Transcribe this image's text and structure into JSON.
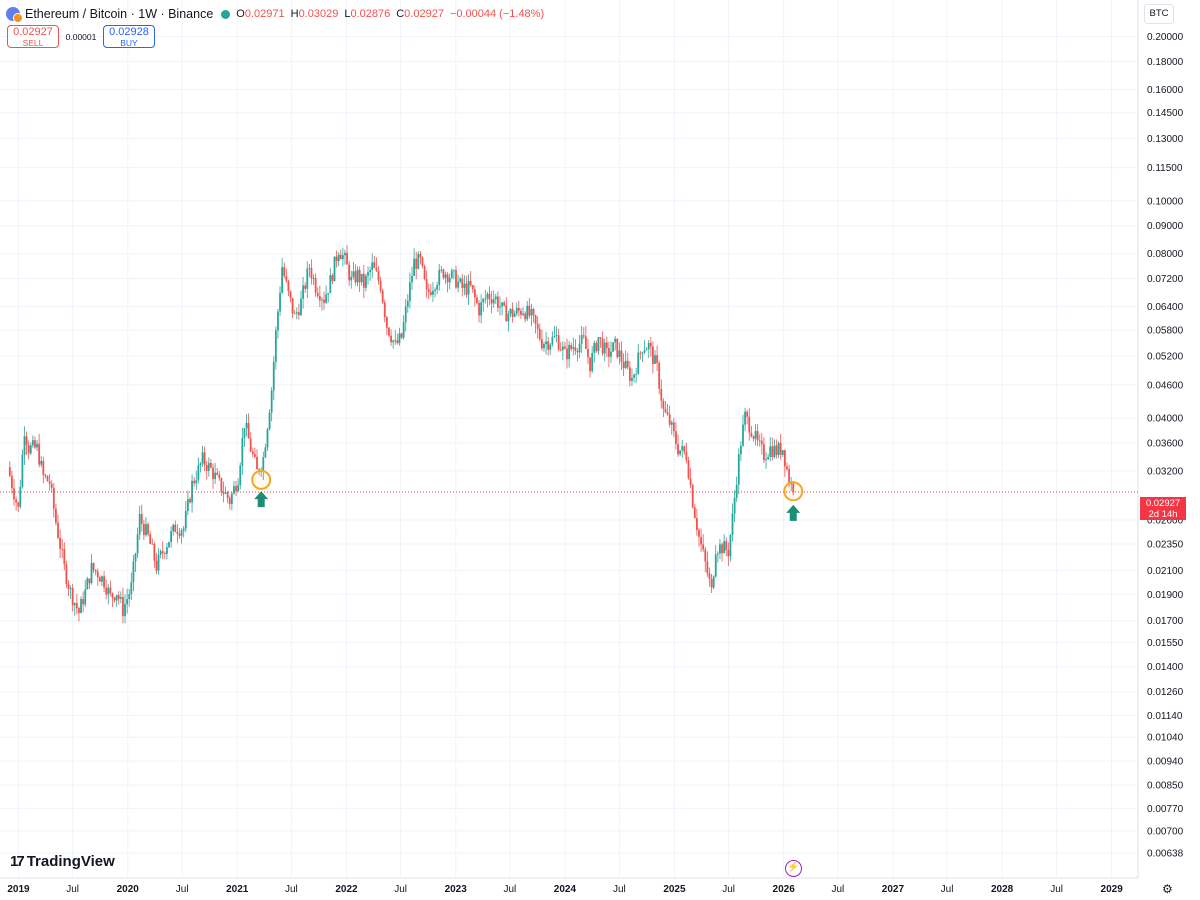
{
  "header": {
    "title": "Ethereum / Bitcoin · 1W · Binance",
    "open_label": "O",
    "open": "0.02971",
    "high_label": "H",
    "high": "0.03029",
    "low_label": "L",
    "low": "0.02876",
    "close_label": "C",
    "close": "0.02927",
    "change": "−0.00044 (−1.48%)"
  },
  "trade": {
    "sell_price": "0.02927",
    "sell_label": "SELL",
    "spread": "0.00001",
    "buy_price": "0.02928",
    "buy_label": "BUY"
  },
  "currency_button": "BTC",
  "last_price": {
    "value": "0.02927",
    "countdown": "2d 14h"
  },
  "branding": {
    "logo_text": "TradingView"
  },
  "colors": {
    "up": "#26a69a",
    "down": "#ef5350",
    "marker_circle": "#f5a623",
    "arrow": "#1e8c77"
  },
  "icons": {
    "symbol": "eth-btc-icon",
    "status": "market-status-icon",
    "bolt": "bolt-icon",
    "settings": "gear-icon"
  },
  "chart_data": {
    "type": "candlestick",
    "log_scale": true,
    "grid": true,
    "y_ticks": [
      0.2,
      0.18,
      0.16,
      0.145,
      0.13,
      0.115,
      0.1,
      0.09,
      0.08,
      0.072,
      0.064,
      0.058,
      0.052,
      0.046,
      0.04,
      0.036,
      0.032,
      0.026,
      0.0235,
      0.021,
      0.019,
      0.017,
      0.0155,
      0.014,
      0.0126,
      0.0114,
      0.0104,
      0.0094,
      0.0085,
      0.0077,
      0.007,
      0.00638
    ],
    "y_tick_labels": [
      "0.20000",
      "0.18000",
      "0.16000",
      "0.14500",
      "0.13000",
      "0.11500",
      "0.10000",
      "0.09000",
      "0.08000",
      "0.07200",
      "0.06400",
      "0.05800",
      "0.05200",
      "0.04600",
      "0.04000",
      "0.03600",
      "0.03200",
      "0.02600",
      "0.02350",
      "0.02100",
      "0.01900",
      "0.01700",
      "0.01550",
      "0.01400",
      "0.01260",
      "0.01140",
      "0.01040",
      "0.00940",
      "0.00850",
      "0.00770",
      "0.00700",
      "0.00638"
    ],
    "x_ticks": [
      {
        "label": "2019",
        "date": "2019-01-01",
        "bold": true
      },
      {
        "label": "Jul",
        "date": "2019-07-01",
        "bold": false
      },
      {
        "label": "2020",
        "date": "2020-01-01",
        "bold": true
      },
      {
        "label": "Jul",
        "date": "2020-07-01",
        "bold": false
      },
      {
        "label": "2021",
        "date": "2021-01-01",
        "bold": true
      },
      {
        "label": "Jul",
        "date": "2021-07-01",
        "bold": false
      },
      {
        "label": "2022",
        "date": "2022-01-01",
        "bold": true
      },
      {
        "label": "Jul",
        "date": "2022-07-01",
        "bold": false
      },
      {
        "label": "2023",
        "date": "2023-01-01",
        "bold": true
      },
      {
        "label": "Jul",
        "date": "2023-07-01",
        "bold": false
      },
      {
        "label": "2024",
        "date": "2024-01-01",
        "bold": true
      },
      {
        "label": "Jul",
        "date": "2024-07-01",
        "bold": false
      },
      {
        "label": "2025",
        "date": "2025-01-01",
        "bold": true
      },
      {
        "label": "Jul",
        "date": "2025-07-01",
        "bold": false
      },
      {
        "label": "2026",
        "date": "2026-01-01",
        "bold": true
      },
      {
        "label": "Jul",
        "date": "2026-07-01",
        "bold": false
      },
      {
        "label": "2027",
        "date": "2027-01-01",
        "bold": true
      },
      {
        "label": "Jul",
        "date": "2027-07-01",
        "bold": false
      },
      {
        "label": "2028",
        "date": "2028-01-01",
        "bold": true
      },
      {
        "label": "Jul",
        "date": "2028-07-01",
        "bold": false
      },
      {
        "label": "2029",
        "date": "2029-01-01",
        "bold": true
      }
    ],
    "price_line": 0.02927,
    "close_path": [
      [
        "2018-11-26",
        0.0325
      ],
      [
        "2018-12-31",
        0.0272
      ],
      [
        "2019-01-21",
        0.0382
      ],
      [
        "2019-02-04",
        0.0352
      ],
      [
        "2019-03-04",
        0.0352
      ],
      [
        "2019-03-25",
        0.0312
      ],
      [
        "2019-04-15",
        0.0305
      ],
      [
        "2019-05-06",
        0.0258
      ],
      [
        "2019-06-03",
        0.0212
      ],
      [
        "2019-06-24",
        0.0192
      ],
      [
        "2019-07-22",
        0.0176
      ],
      [
        "2019-08-12",
        0.0192
      ],
      [
        "2019-09-02",
        0.0212
      ],
      [
        "2019-09-23",
        0.0208
      ],
      [
        "2019-10-14",
        0.0201
      ],
      [
        "2019-11-04",
        0.0188
      ],
      [
        "2019-11-25",
        0.0192
      ],
      [
        "2019-12-16",
        0.0178
      ],
      [
        "2020-01-13",
        0.0196
      ],
      [
        "2020-02-10",
        0.0262
      ],
      [
        "2020-03-09",
        0.0242
      ],
      [
        "2020-04-06",
        0.0214
      ],
      [
        "2020-05-04",
        0.0232
      ],
      [
        "2020-06-08",
        0.0252
      ],
      [
        "2020-07-06",
        0.0251
      ],
      [
        "2020-08-03",
        0.0302
      ],
      [
        "2020-09-07",
        0.0335
      ],
      [
        "2020-10-05",
        0.0322
      ],
      [
        "2020-11-02",
        0.0302
      ],
      [
        "2020-12-07",
        0.0282
      ],
      [
        "2021-01-04",
        0.0312
      ],
      [
        "2021-01-25",
        0.0392
      ],
      [
        "2021-02-15",
        0.0352
      ],
      [
        "2021-03-08",
        0.0318
      ],
      [
        "2021-03-29",
        0.0338
      ],
      [
        "2021-04-26",
        0.0452
      ],
      [
        "2021-05-10",
        0.0572
      ],
      [
        "2021-05-31",
        0.0758
      ],
      [
        "2021-06-21",
        0.0672
      ],
      [
        "2021-07-12",
        0.0612
      ],
      [
        "2021-08-02",
        0.0652
      ],
      [
        "2021-08-30",
        0.0758
      ],
      [
        "2021-09-20",
        0.0698
      ],
      [
        "2021-10-18",
        0.0662
      ],
      [
        "2021-11-08",
        0.0712
      ],
      [
        "2021-12-06",
        0.0818
      ],
      [
        "2021-12-27",
        0.0778
      ],
      [
        "2022-01-17",
        0.0712
      ],
      [
        "2022-02-07",
        0.0732
      ],
      [
        "2022-02-28",
        0.0702
      ],
      [
        "2022-03-28",
        0.0758
      ],
      [
        "2022-04-25",
        0.0702
      ],
      [
        "2022-05-16",
        0.0592
      ],
      [
        "2022-06-13",
        0.0542
      ],
      [
        "2022-07-04",
        0.0562
      ],
      [
        "2022-07-25",
        0.0662
      ],
      [
        "2022-08-15",
        0.0772
      ],
      [
        "2022-09-05",
        0.0772
      ],
      [
        "2022-09-26",
        0.0672
      ],
      [
        "2022-10-24",
        0.0712
      ],
      [
        "2022-11-21",
        0.0742
      ],
      [
        "2022-12-26",
        0.0722
      ],
      [
        "2023-01-23",
        0.0692
      ],
      [
        "2023-02-20",
        0.0692
      ],
      [
        "2023-03-20",
        0.0632
      ],
      [
        "2023-04-17",
        0.0672
      ],
      [
        "2023-05-15",
        0.0662
      ],
      [
        "2023-06-12",
        0.0622
      ],
      [
        "2023-07-17",
        0.0622
      ],
      [
        "2023-08-14",
        0.0632
      ],
      [
        "2023-09-11",
        0.0612
      ],
      [
        "2023-10-16",
        0.0552
      ],
      [
        "2023-11-06",
        0.0552
      ],
      [
        "2023-12-04",
        0.0562
      ],
      [
        "2024-01-01",
        0.0522
      ],
      [
        "2024-01-29",
        0.0542
      ],
      [
        "2024-03-04",
        0.0552
      ],
      [
        "2024-03-25",
        0.0502
      ],
      [
        "2024-04-22",
        0.0562
      ],
      [
        "2024-05-20",
        0.0522
      ],
      [
        "2024-06-17",
        0.0542
      ],
      [
        "2024-07-15",
        0.0502
      ],
      [
        "2024-08-12",
        0.0472
      ],
      [
        "2024-09-02",
        0.0512
      ],
      [
        "2024-09-16",
        0.0542
      ],
      [
        "2024-10-07",
        0.0542
      ],
      [
        "2024-11-04",
        0.0492
      ],
      [
        "2024-11-25",
        0.0412
      ],
      [
        "2024-12-16",
        0.0392
      ],
      [
        "2025-01-13",
        0.0352
      ],
      [
        "2025-02-10",
        0.0342
      ],
      [
        "2025-03-03",
        0.0282
      ],
      [
        "2025-03-24",
        0.0242
      ],
      [
        "2025-04-21",
        0.0208
      ],
      [
        "2025-05-05",
        0.0192
      ],
      [
        "2025-05-19",
        0.0232
      ],
      [
        "2025-06-09",
        0.0232
      ],
      [
        "2025-06-30",
        0.0228
      ],
      [
        "2025-07-14",
        0.0262
      ],
      [
        "2025-07-28",
        0.0312
      ],
      [
        "2025-08-11",
        0.0362
      ],
      [
        "2025-08-25",
        0.0402
      ],
      [
        "2025-09-15",
        0.0382
      ],
      [
        "2025-10-06",
        0.0358
      ],
      [
        "2025-10-27",
        0.0342
      ],
      [
        "2025-11-17",
        0.0352
      ],
      [
        "2025-12-08",
        0.0348
      ],
      [
        "2025-12-29",
        0.0352
      ],
      [
        "2026-01-19",
        0.0308
      ],
      [
        "2026-02-02",
        0.0293
      ]
    ],
    "annotations": [
      {
        "type": "circle",
        "date": "2021-03-22",
        "value": 0.0308
      },
      {
        "type": "arrow-up",
        "date": "2021-03-22",
        "value": 0.0284
      },
      {
        "type": "circle",
        "date": "2026-02-02",
        "value": 0.02935
      },
      {
        "type": "arrow-up",
        "date": "2026-02-02",
        "value": 0.0268
      }
    ]
  }
}
